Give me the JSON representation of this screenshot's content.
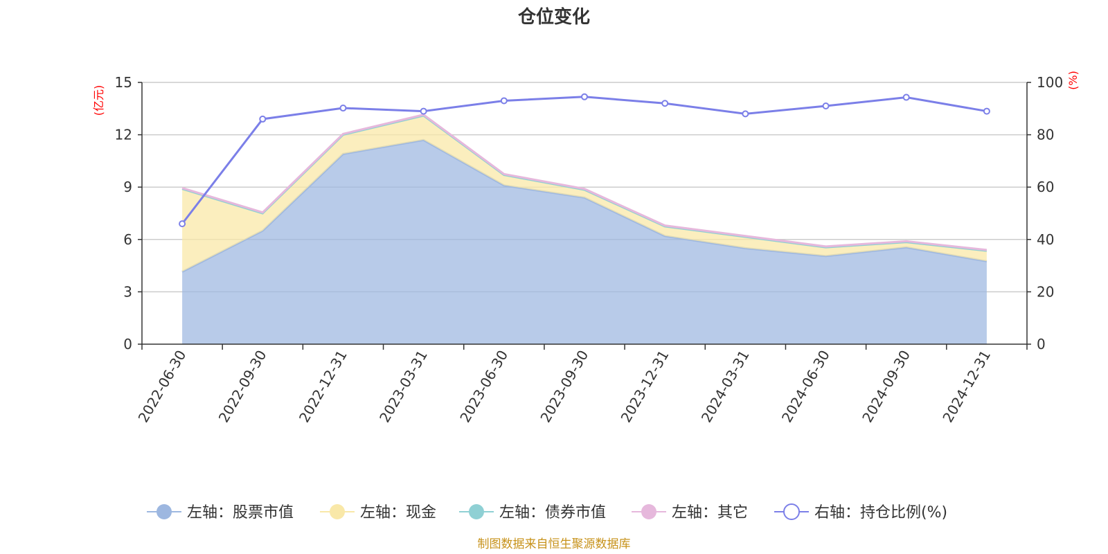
{
  "chart_data": {
    "type": "area",
    "title": "仓位变化",
    "source": "制图数据来自恒生聚源数据库",
    "left_axis": {
      "unit": "(亿元)",
      "min": 0,
      "max": 15,
      "ticks": [
        0,
        3,
        6,
        9,
        12,
        15
      ]
    },
    "right_axis": {
      "unit": "(%)",
      "min": 0,
      "max": 100,
      "ticks": [
        0,
        20,
        40,
        60,
        80,
        100
      ]
    },
    "categories": [
      "2022-06-30",
      "2022-09-30",
      "2022-12-31",
      "2023-03-31",
      "2023-06-30",
      "2023-09-30",
      "2023-12-31",
      "2024-03-31",
      "2024-06-30",
      "2024-09-30",
      "2024-12-31"
    ],
    "series": [
      {
        "name": "左轴：股票市值",
        "axis": "left",
        "type": "area-stack",
        "color": "#9db7e0",
        "values": [
          4.15,
          6.5,
          10.9,
          11.7,
          9.1,
          8.4,
          6.2,
          5.5,
          5.05,
          5.55,
          4.75
        ]
      },
      {
        "name": "左轴：现金",
        "axis": "left",
        "type": "area-stack",
        "color": "#f9e8a8",
        "values": [
          4.75,
          1.0,
          1.1,
          1.4,
          0.6,
          0.45,
          0.55,
          0.65,
          0.5,
          0.3,
          0.6
        ]
      },
      {
        "name": "左轴：债券市值",
        "axis": "left",
        "type": "area-stack",
        "color": "#8fd0d4",
        "values": [
          0,
          0,
          0,
          0,
          0,
          0,
          0,
          0,
          0,
          0,
          0
        ]
      },
      {
        "name": "左轴：其它",
        "axis": "left",
        "type": "area-stack",
        "color": "#e6b8dc",
        "values": [
          0.05,
          0.05,
          0.05,
          0.05,
          0.05,
          0.05,
          0.05,
          0.05,
          0.05,
          0.05,
          0.05
        ]
      },
      {
        "name": "右轴：持仓比例(%)",
        "axis": "right",
        "type": "line",
        "color": "#7b7fe8",
        "values": [
          46,
          86,
          90.2,
          89,
          93,
          94.5,
          92,
          88,
          91,
          94.3,
          89
        ]
      }
    ],
    "legend_position": "bottom",
    "grid": true
  }
}
